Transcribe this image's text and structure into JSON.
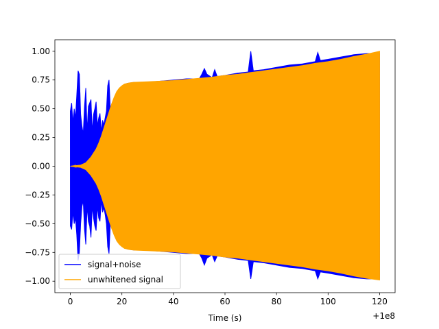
{
  "chart_data": {
    "type": "line",
    "title": "",
    "xlabel": "Time (s)",
    "ylabel": "",
    "x_offset_label": "+1e8",
    "xlim": [
      -6,
      126
    ],
    "ylim": [
      -1.1,
      1.1
    ],
    "x_ticks": [
      0,
      20,
      40,
      60,
      80,
      100,
      120
    ],
    "x_tick_labels": [
      "0",
      "20",
      "40",
      "60",
      "80",
      "100",
      "120"
    ],
    "y_ticks": [
      -1.0,
      -0.75,
      -0.5,
      -0.25,
      0.0,
      0.25,
      0.5,
      0.75,
      1.0
    ],
    "y_tick_labels": [
      "−1.00",
      "−0.75",
      "−0.50",
      "−0.25",
      "0.00",
      "0.25",
      "0.50",
      "0.75",
      "1.00"
    ],
    "grid": false,
    "legend_position": "lower-left",
    "series": [
      {
        "name": "signal+noise",
        "color": "#0000ff",
        "style": "oscillating-envelope",
        "x": [
          0,
          0.5,
          1,
          1.5,
          2,
          2.5,
          3,
          3.5,
          4,
          4.5,
          5,
          5.5,
          6,
          6.5,
          7,
          7.5,
          8,
          8.5,
          9,
          9.5,
          10,
          10.5,
          11,
          11.5,
          12,
          12.5,
          13,
          13.5,
          14,
          14.5,
          15,
          15.5,
          16,
          17,
          18,
          19,
          20,
          22,
          25,
          30,
          35,
          40,
          45,
          50,
          51,
          52,
          53,
          55,
          56,
          57,
          60,
          65,
          69,
          70,
          71,
          75,
          80,
          85,
          90,
          95,
          96,
          97,
          100,
          105,
          110,
          115,
          120
        ],
        "upper": [
          0.48,
          0.55,
          0.38,
          0.5,
          0.42,
          0.62,
          0.83,
          0.8,
          0.45,
          0.35,
          0.28,
          0.52,
          0.68,
          0.3,
          0.52,
          0.55,
          0.58,
          0.3,
          0.45,
          0.5,
          0.56,
          0.35,
          0.42,
          0.46,
          0.3,
          0.4,
          0.36,
          0.42,
          0.48,
          0.7,
          0.75,
          0.5,
          0.35,
          0.36,
          0.48,
          0.58,
          0.66,
          0.72,
          0.73,
          0.73,
          0.74,
          0.75,
          0.76,
          0.76,
          0.8,
          0.85,
          0.8,
          0.77,
          0.84,
          0.78,
          0.79,
          0.81,
          0.82,
          1.0,
          0.83,
          0.84,
          0.86,
          0.88,
          0.89,
          0.91,
          0.99,
          0.92,
          0.93,
          0.95,
          0.97,
          0.98,
          0.98
        ],
        "lower": [
          -0.52,
          -0.55,
          -0.4,
          -0.5,
          -0.45,
          -0.6,
          -0.82,
          -0.75,
          -0.5,
          -0.35,
          -0.3,
          -0.55,
          -0.68,
          -0.35,
          -0.48,
          -0.52,
          -0.62,
          -0.35,
          -0.45,
          -0.52,
          -0.56,
          -0.35,
          -0.45,
          -0.48,
          -0.3,
          -0.4,
          -0.36,
          -0.42,
          -0.5,
          -0.7,
          -0.76,
          -0.5,
          -0.35,
          -0.36,
          -0.48,
          -0.58,
          -0.66,
          -0.72,
          -0.73,
          -0.73,
          -0.74,
          -0.75,
          -0.76,
          -0.76,
          -0.8,
          -0.86,
          -0.8,
          -0.77,
          -0.83,
          -0.78,
          -0.79,
          -0.81,
          -0.82,
          -0.98,
          -0.83,
          -0.84,
          -0.86,
          -0.88,
          -0.89,
          -0.91,
          -0.98,
          -0.92,
          -0.93,
          -0.95,
          -0.97,
          -0.98,
          -0.98
        ]
      },
      {
        "name": "unwhitened signal",
        "color": "#ffa500",
        "style": "oscillating-envelope",
        "x": [
          0,
          2,
          4,
          6,
          8,
          10,
          11,
          12,
          13,
          14,
          15,
          16,
          17,
          18,
          19,
          20,
          21,
          22,
          23,
          24,
          25,
          30,
          35,
          40,
          45,
          50,
          55,
          60,
          65,
          70,
          75,
          80,
          85,
          90,
          95,
          100,
          105,
          110,
          115,
          120
        ],
        "upper": [
          0.0,
          0.005,
          0.01,
          0.03,
          0.08,
          0.15,
          0.2,
          0.26,
          0.33,
          0.4,
          0.47,
          0.54,
          0.6,
          0.65,
          0.68,
          0.7,
          0.715,
          0.72,
          0.725,
          0.728,
          0.73,
          0.735,
          0.74,
          0.745,
          0.755,
          0.765,
          0.775,
          0.79,
          0.8,
          0.815,
          0.83,
          0.845,
          0.86,
          0.875,
          0.895,
          0.91,
          0.93,
          0.955,
          0.975,
          1.0
        ],
        "lower": [
          0.0,
          -0.005,
          -0.01,
          -0.03,
          -0.08,
          -0.15,
          -0.2,
          -0.26,
          -0.33,
          -0.4,
          -0.47,
          -0.54,
          -0.6,
          -0.65,
          -0.68,
          -0.7,
          -0.715,
          -0.72,
          -0.725,
          -0.728,
          -0.73,
          -0.735,
          -0.74,
          -0.745,
          -0.755,
          -0.765,
          -0.775,
          -0.79,
          -0.8,
          -0.815,
          -0.83,
          -0.845,
          -0.86,
          -0.875,
          -0.895,
          -0.91,
          -0.93,
          -0.955,
          -0.975,
          -0.99
        ]
      }
    ]
  }
}
